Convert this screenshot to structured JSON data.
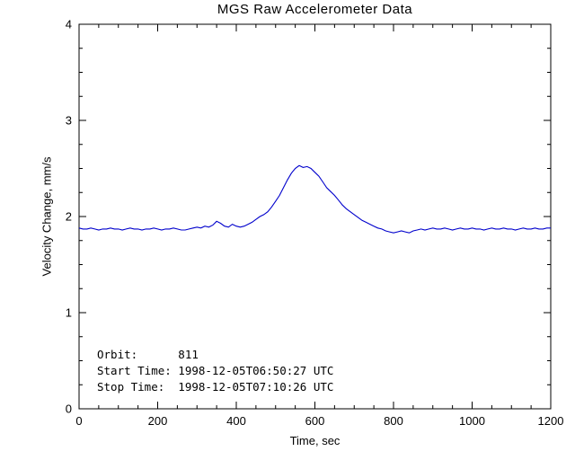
{
  "chart_data": {
    "type": "line",
    "title": "MGS Raw Accelerometer Data",
    "xlabel": "Time, sec",
    "ylabel": "Velocity Change, mm/s",
    "xlim": [
      0,
      1200
    ],
    "ylim": [
      0,
      4
    ],
    "xticks": [
      0,
      200,
      400,
      600,
      800,
      1000,
      1200
    ],
    "yticks": [
      0,
      1,
      2,
      3,
      4
    ],
    "x_minor_step": 50,
    "y_minor_step": 0.25,
    "line_color": "#0000cc",
    "axis_color": "#000000",
    "background_color": "#ffffff",
    "legend": "none",
    "grid": false,
    "annotations": [
      "Orbit:      811",
      "Start Time: 1998-12-05T06:50:27 UTC",
      "Stop Time:  1998-12-05T07:10:26 UTC"
    ],
    "series_name": "velocity-change",
    "x_start": 0,
    "x_step": 10,
    "y": [
      1.88,
      1.87,
      1.87,
      1.88,
      1.87,
      1.86,
      1.87,
      1.87,
      1.88,
      1.87,
      1.87,
      1.86,
      1.87,
      1.88,
      1.87,
      1.87,
      1.86,
      1.87,
      1.87,
      1.88,
      1.87,
      1.86,
      1.87,
      1.87,
      1.88,
      1.87,
      1.86,
      1.86,
      1.87,
      1.88,
      1.89,
      1.88,
      1.9,
      1.89,
      1.91,
      1.95,
      1.93,
      1.9,
      1.89,
      1.92,
      1.9,
      1.89,
      1.9,
      1.92,
      1.94,
      1.97,
      2.0,
      2.02,
      2.05,
      2.1,
      2.16,
      2.22,
      2.3,
      2.38,
      2.45,
      2.5,
      2.53,
      2.51,
      2.52,
      2.5,
      2.46,
      2.42,
      2.36,
      2.3,
      2.26,
      2.22,
      2.17,
      2.12,
      2.08,
      2.05,
      2.02,
      1.99,
      1.96,
      1.94,
      1.92,
      1.9,
      1.88,
      1.87,
      1.85,
      1.84,
      1.83,
      1.84,
      1.85,
      1.84,
      1.83,
      1.85,
      1.86,
      1.87,
      1.86,
      1.87,
      1.88,
      1.87,
      1.87,
      1.88,
      1.87,
      1.86,
      1.87,
      1.88,
      1.87,
      1.87,
      1.88,
      1.87,
      1.87,
      1.86,
      1.87,
      1.88,
      1.87,
      1.87,
      1.88,
      1.87,
      1.87,
      1.86,
      1.87,
      1.88,
      1.87,
      1.87,
      1.88,
      1.87,
      1.87,
      1.88,
      1.88
    ]
  }
}
